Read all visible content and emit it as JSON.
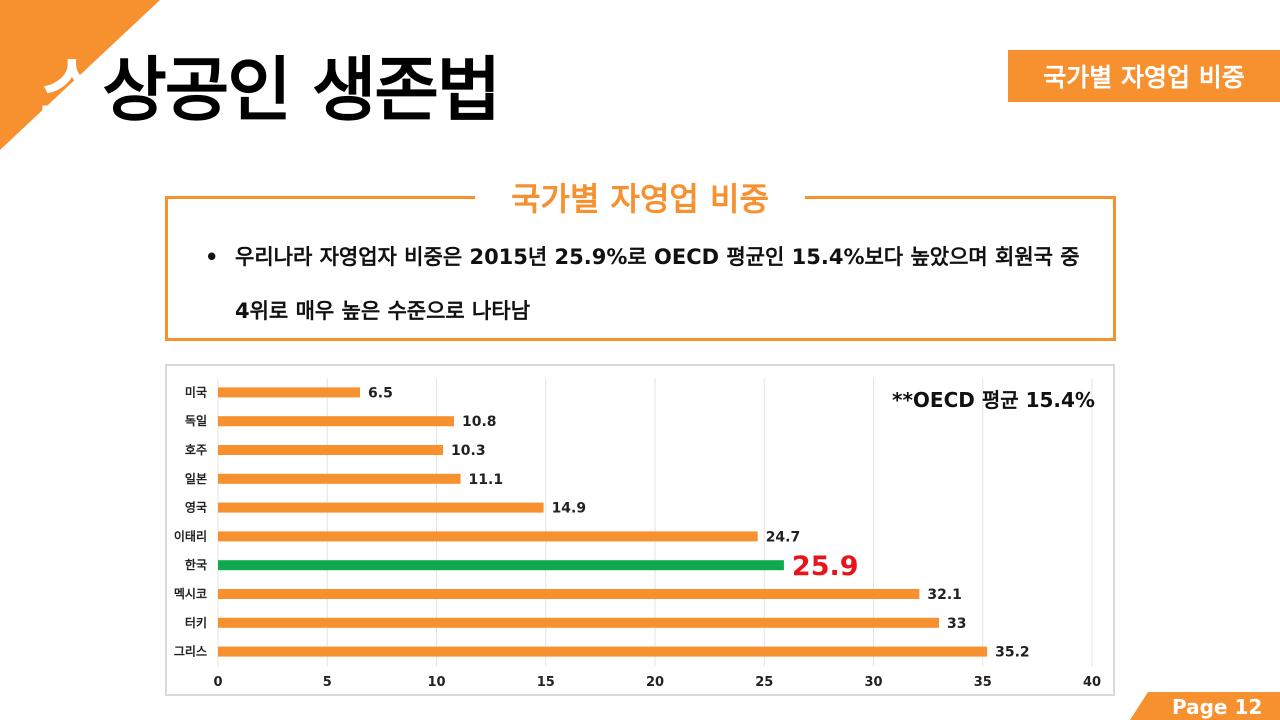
{
  "header": {
    "title_first": "소",
    "title_rest": "상공인 생존법",
    "tag": "국가별 자영업 비중"
  },
  "summary": {
    "title": "국가별 자영업 비중",
    "bullet": "•",
    "text": "우리나라 자영업자 비중은 2015년 25.9%로 OECD 평균인 15.4%보다 높았으며 회원국 중 4위로 매우 높은 수준으로 나타남"
  },
  "note": "**OECD 평균 15.4%",
  "footer": {
    "page": "Page 12"
  },
  "colors": {
    "accent": "#f7902f",
    "highlight_bar": "#12a84e",
    "highlight_label": "#e8141c",
    "grid": "#e3e3e3"
  },
  "chart_data": {
    "type": "bar",
    "orientation": "horizontal",
    "categories": [
      "미국",
      "독일",
      "호주",
      "일본",
      "영국",
      "이태리",
      "한국",
      "멕시코",
      "터키",
      "그리스"
    ],
    "values": [
      6.5,
      10.8,
      10.3,
      11.1,
      14.9,
      24.7,
      25.9,
      32.1,
      33,
      35.2
    ],
    "value_labels": [
      "6.5",
      "10.8",
      "10.3",
      "11.1",
      "14.9",
      "24.7",
      "25.9",
      "32.1",
      "33",
      "35.2"
    ],
    "highlight_category": "한국",
    "xlim": [
      0,
      40
    ],
    "xticks": [
      "0",
      "5",
      "10",
      "15",
      "20",
      "25",
      "30",
      "35",
      "40"
    ],
    "grid": true,
    "legend": "none"
  }
}
